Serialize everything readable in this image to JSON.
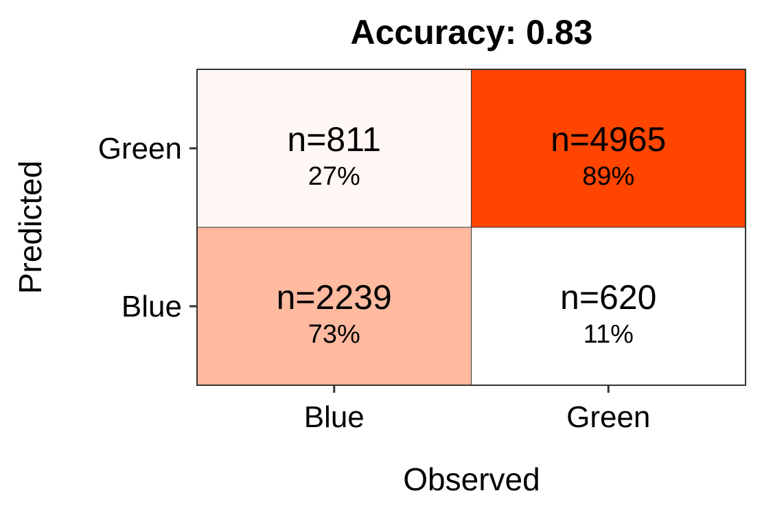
{
  "chart_data": {
    "type": "heatmap",
    "title": "Accuracy: 0.83",
    "xlabel": "Observed",
    "ylabel": "Predicted",
    "x_categories": [
      "Blue",
      "Green"
    ],
    "y_categories": [
      "Blue",
      "Green"
    ],
    "cells": [
      {
        "observed": "Blue",
        "predicted": "Green",
        "count_label": "n=811",
        "pct_label": "27%",
        "count": 811,
        "pct": 27
      },
      {
        "observed": "Green",
        "predicted": "Green",
        "count_label": "n=4965",
        "pct_label": "89%",
        "count": 4965,
        "pct": 89
      },
      {
        "observed": "Blue",
        "predicted": "Blue",
        "count_label": "n=2239",
        "pct_label": "73%",
        "count": 2239,
        "pct": 73
      },
      {
        "observed": "Green",
        "predicted": "Blue",
        "count_label": "n=620",
        "pct_label": "11%",
        "count": 620,
        "pct": 11
      }
    ],
    "color_scale": {
      "low": "#ffffff",
      "high": "#ff4500"
    },
    "grid": false,
    "legend": "none"
  }
}
